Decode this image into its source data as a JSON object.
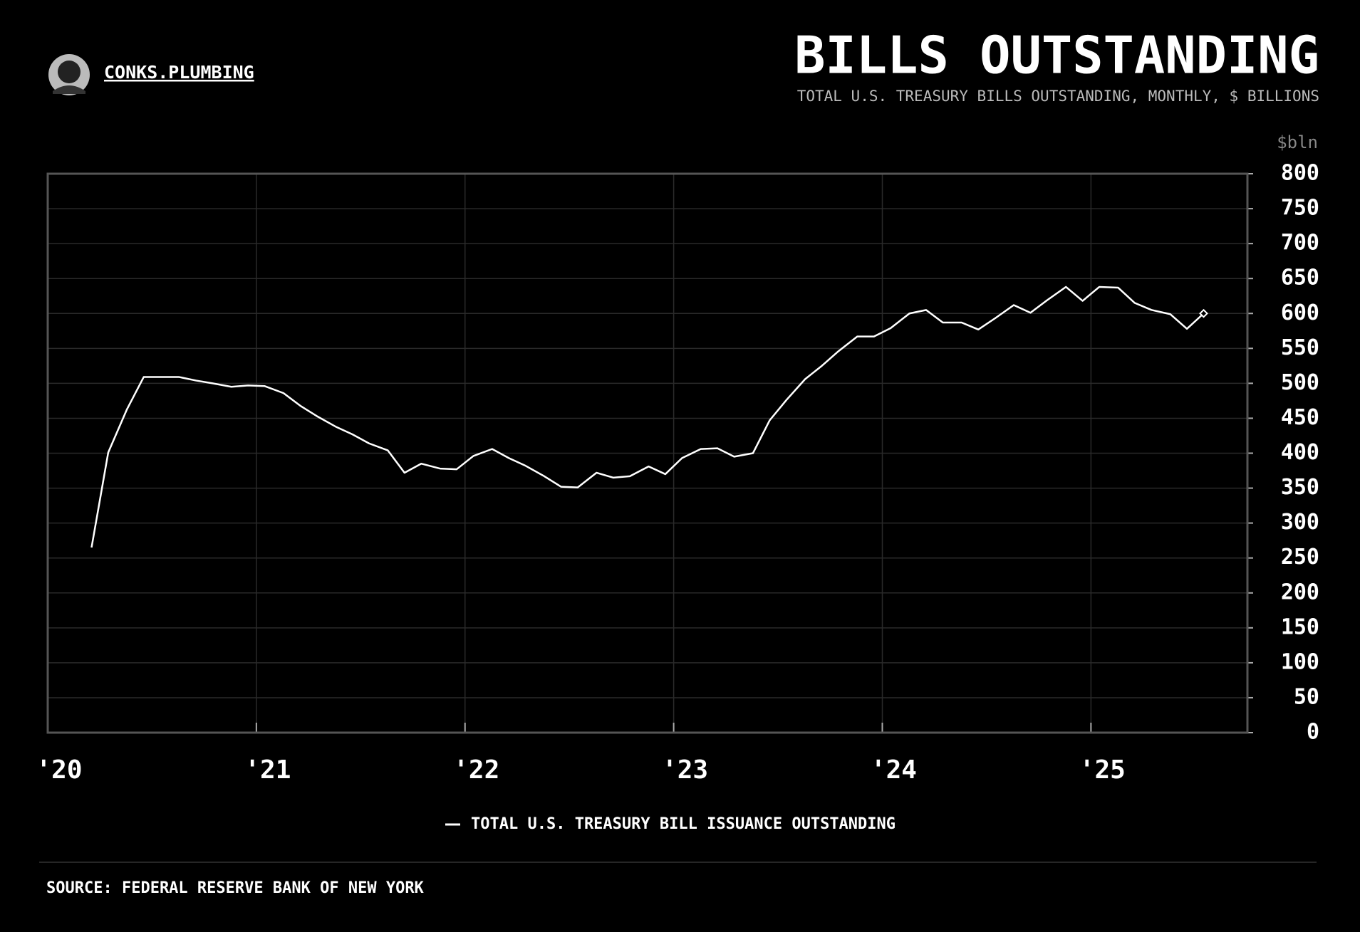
{
  "chart_data": {
    "type": "line",
    "brand": "CONKS.PLUMBING",
    "title": "BILLS OUTSTANDING",
    "subtitle": "TOTAL U.S. TREASURY BILLS OUTSTANDING, MONTHLY, $ BILLIONS",
    "y_unit_label": "$bln",
    "source": "SOURCE: FEDERAL RESERVE BANK OF NEW YORK",
    "x": [
      2020.21,
      2020.29,
      2020.38,
      2020.46,
      2020.54,
      2020.63,
      2020.71,
      2020.79,
      2020.88,
      2020.96,
      2021.04,
      2021.13,
      2021.21,
      2021.29,
      2021.38,
      2021.46,
      2021.54,
      2021.63,
      2021.71,
      2021.79,
      2021.88,
      2021.96,
      2022.04,
      2022.13,
      2022.21,
      2022.29,
      2022.38,
      2022.46,
      2022.54,
      2022.63,
      2022.71,
      2022.79,
      2022.88,
      2022.96,
      2023.04,
      2023.13,
      2023.21,
      2023.29,
      2023.38,
      2023.46,
      2023.54,
      2023.63,
      2023.71,
      2023.79,
      2023.88,
      2023.96,
      2024.04,
      2024.13,
      2024.21,
      2024.29,
      2024.38,
      2024.46,
      2024.54,
      2024.63,
      2024.71,
      2024.79,
      2024.88,
      2024.96,
      2025.04,
      2025.13,
      2025.21,
      2025.29,
      2025.38,
      2025.46,
      2025.54
    ],
    "series": [
      {
        "name": "TOTAL U.S. TREASURY BILL ISSUANCE OUTSTANDING",
        "color": "#ffffff",
        "values": [
          265,
          401,
          463,
          509,
          509,
          509,
          504,
          500,
          495,
          497,
          496,
          486,
          468,
          453,
          438,
          427,
          414,
          404,
          372,
          385,
          378,
          377,
          396,
          406,
          393,
          382,
          367,
          352,
          351,
          372,
          365,
          367,
          381,
          370,
          393,
          406,
          407,
          395,
          400,
          447,
          476,
          506,
          525,
          546,
          567,
          567,
          579,
          600,
          605,
          587,
          587,
          577,
          593,
          612,
          601,
          619,
          638,
          618,
          638,
          637,
          615,
          605,
          599,
          578,
          600
        ]
      }
    ],
    "xlim": [
      2020,
      2025.75
    ],
    "xticks": [
      {
        "value": 2020,
        "label": "'20"
      },
      {
        "value": 2021,
        "label": "'21"
      },
      {
        "value": 2022,
        "label": "'22"
      },
      {
        "value": 2023,
        "label": "'23"
      },
      {
        "value": 2024,
        "label": "'24"
      },
      {
        "value": 2025,
        "label": "'25"
      }
    ],
    "ylim": [
      0,
      800
    ],
    "yticks": [
      0,
      50,
      100,
      150,
      200,
      250,
      300,
      350,
      400,
      450,
      500,
      550,
      600,
      650,
      700,
      750,
      800
    ],
    "grid": true
  }
}
